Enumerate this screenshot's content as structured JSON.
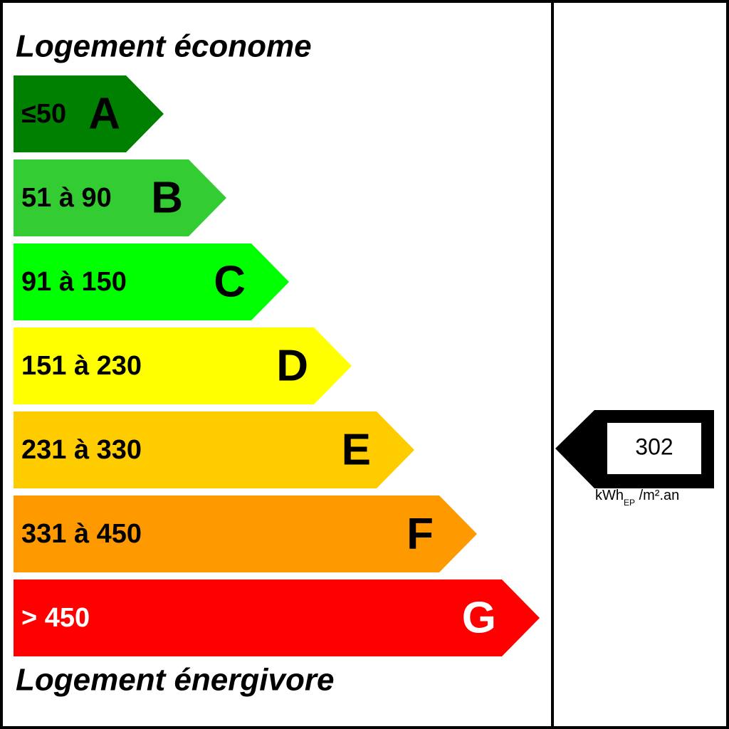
{
  "header": {
    "title": "Logement économe"
  },
  "footer": {
    "title": "Logement énergivore"
  },
  "classes": [
    {
      "range": "≤50",
      "letter": "A",
      "color": "#008000",
      "text_color": "#000000"
    },
    {
      "range": "51 à 90",
      "letter": "B",
      "color": "#33cc33",
      "text_color": "#000000"
    },
    {
      "range": "91 à 150",
      "letter": "C",
      "color": "#00ff00",
      "text_color": "#000000"
    },
    {
      "range": "151 à 230",
      "letter": "D",
      "color": "#ffff00",
      "text_color": "#000000"
    },
    {
      "range": "231 à 330",
      "letter": "E",
      "color": "#ffcc00",
      "text_color": "#000000"
    },
    {
      "range": "331 à 450",
      "letter": "F",
      "color": "#ff9900",
      "text_color": "#000000"
    },
    {
      "range": "> 450",
      "letter": "G",
      "color": "#ff0000",
      "text_color": "#ffffff"
    }
  ],
  "indicator": {
    "value": "302",
    "unit": "kWh",
    "unit_subscript": "EP",
    "unit_suffix": " /m².an"
  }
}
